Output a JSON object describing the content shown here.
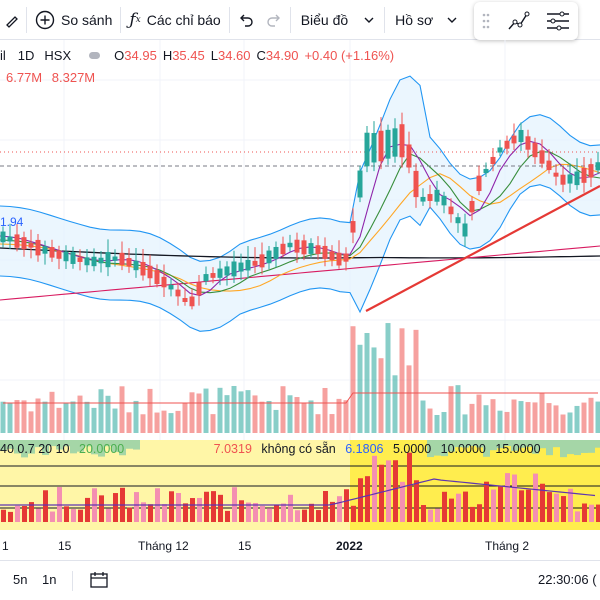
{
  "toolbar": {
    "compare_label": "So sánh",
    "indicators_label": "Các chỉ báo",
    "chart_type_label": "Biểu đồ",
    "profile_label": "Hồ sơ"
  },
  "legend": {
    "symbol_fragment": "il",
    "interval": "1D",
    "exchange": "HSX",
    "o_label": "O",
    "o_value": "34.95",
    "h_label": "H",
    "h_value": "35.45",
    "l_label": "L",
    "l_value": "34.60",
    "c_label": "C",
    "c_value": "34.90",
    "change": "+0.40 (+1.16%)"
  },
  "volume_legend": {
    "v1": "6.77M",
    "v2": "8.327M"
  },
  "price_marker": "1.94",
  "indicator_legend": {
    "params": "40 0.7 20 10",
    "value_a": "20.0000",
    "value_b": "7.0319",
    "not_available": "không có sẵn",
    "value_c": "6.1806",
    "value_d": "5.0000",
    "value_e": "10.0000",
    "value_f": "15.0000"
  },
  "time_axis": {
    "labels": [
      "1",
      "15",
      "Tháng 12",
      "15",
      "2022",
      "Tháng 2"
    ]
  },
  "bottom": {
    "range_5n": "5n",
    "range_1n": "1n",
    "clock": "22:30:06 ("
  },
  "colors": {
    "up": "#26a69a",
    "down": "#ef5350",
    "band_fill": "#e3f2fd",
    "band_line": "#2196f3",
    "trendline": "#e53935"
  }
}
